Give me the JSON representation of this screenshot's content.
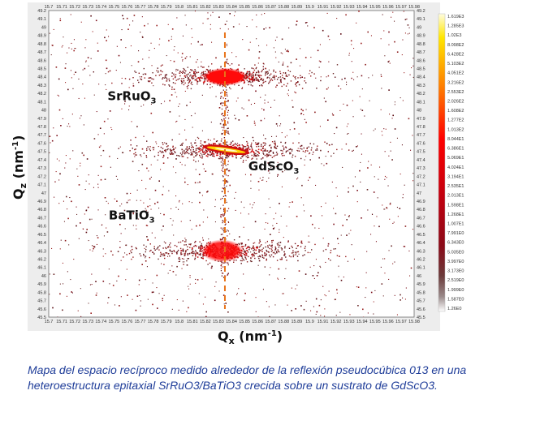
{
  "chart_data": {
    "type": "heatmap",
    "title": "",
    "xlabel_main": "Q",
    "xlabel_sub": "x",
    "xlabel_unit_pre": " (nm",
    "xlabel_unit_sup": "-1",
    "xlabel_unit_post": ")",
    "ylabel_main": "Q",
    "ylabel_sub": "z",
    "ylabel_unit_pre": " (nm",
    "ylabel_unit_sup": "-1",
    "ylabel_unit_post": ")",
    "xlim": [
      15.7,
      15.98
    ],
    "ylim": [
      45.5,
      49.2
    ],
    "x_ticks": [
      "15.7",
      "15.71",
      "15.72",
      "15.73",
      "15.74",
      "15.75",
      "15.76",
      "15.77",
      "15.78",
      "15.79",
      "15.8",
      "15.81",
      "15.82",
      "15.83",
      "15.84",
      "15.85",
      "15.86",
      "15.87",
      "15.88",
      "15.89",
      "15.9",
      "15.91",
      "15.92",
      "15.93",
      "15.94",
      "15.95",
      "15.96",
      "15.97",
      "15.98"
    ],
    "y_ticks": [
      "49.2",
      "49.1",
      "49",
      "48.9",
      "48.8",
      "48.7",
      "48.6",
      "48.5",
      "48.4",
      "48.3",
      "48.2",
      "48.1",
      "48",
      "47.9",
      "47.8",
      "47.7",
      "47.6",
      "47.5",
      "47.4",
      "47.3",
      "47.2",
      "47.1",
      "47",
      "46.9",
      "46.8",
      "46.7",
      "46.6",
      "46.5",
      "46.4",
      "46.3",
      "46.2",
      "46.1",
      "46",
      "45.9",
      "45.8",
      "45.7",
      "45.6",
      "45.5"
    ],
    "colorbar_ticks": [
      "1.619E3",
      "1.285E3",
      "1.02E3",
      "8.098E2",
      "6.428E2",
      "5.103E2",
      "4.051E2",
      "3.216E2",
      "2.553E2",
      "2.026E2",
      "1.608E2",
      "1.277E2",
      "1.013E2",
      "8.044E1",
      "6.386E1",
      "5.069E1",
      "4.024E1",
      "3.194E1",
      "2.535E1",
      "2.013E1",
      "1.598E1",
      "1.268E1",
      "1.007E1",
      "7.991E0",
      "6.343E0",
      "5.035E0",
      "3.997E0",
      "3.173E0",
      "2.519E0",
      "1.999E0",
      "1.587E0",
      "1.26E0"
    ],
    "colorbar_scale": "log",
    "colorbar_colors": [
      "#fffde0",
      "#ffe600",
      "#ff7a00",
      "#ff0000",
      "#c00010",
      "#8a0a18",
      "#6b3a3a",
      "#9a8a8a",
      "#ffffff"
    ],
    "reference_line_qx": 15.835,
    "peaks": [
      {
        "label_main": "SrRuO",
        "label_sub": "3",
        "qx": 15.835,
        "qz": 48.4,
        "label_qx": 15.745,
        "label_qz": 48.12
      },
      {
        "label_main": "GdScO",
        "label_sub": "3",
        "qx": 15.836,
        "qz": 47.52,
        "label_qx": 15.853,
        "label_qz": 47.27
      },
      {
        "label_main": "BaTiO",
        "label_sub": "3",
        "qx": 15.833,
        "qz": 46.3,
        "label_qx": 15.746,
        "label_qz": 46.68
      }
    ]
  },
  "caption": "Mapa del espacio recíproco medido alrededor de la reflexión pseudocúbica 013 en una heteroestructura epitaxial SrRuO3/BaTiO3 crecida sobre un sustrato de GdScO3."
}
